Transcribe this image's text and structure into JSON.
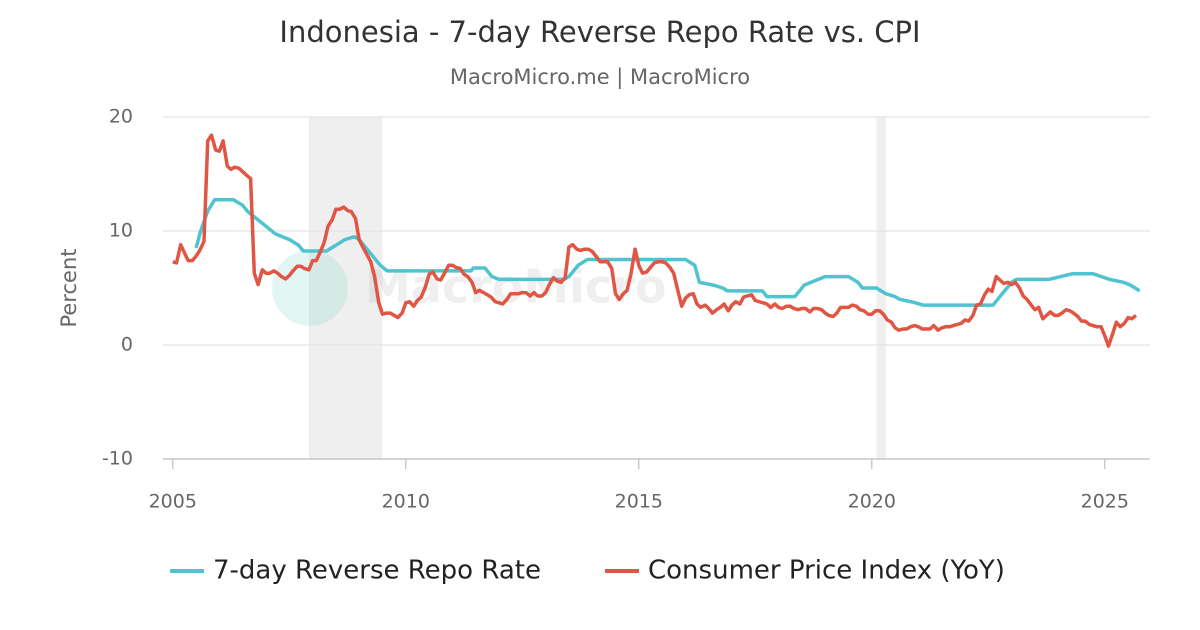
{
  "chart_data": {
    "type": "line",
    "title": "Indonesia - 7-day Reverse Repo Rate vs. CPI",
    "subtitle": "MacroMicro.me | MacroMicro",
    "y_label": "Percent",
    "watermark": "MacroMicro",
    "xlim": [
      2004.79,
      2025.97
    ],
    "xticks": [
      2005,
      2010,
      2015,
      2020,
      2025
    ],
    "ylim": [
      -10,
      20
    ],
    "yticks": [
      -10,
      0,
      10,
      20
    ],
    "grid": true,
    "legend": "bottom",
    "shaded_periods": [
      [
        2007.92,
        2009.5
      ],
      [
        2020.1,
        2020.3
      ]
    ],
    "series": [
      {
        "name": "7-day Reverse Repo Rate",
        "color": "#4fc3d0",
        "x": [
          2005.5,
          2005.6,
          2005.75,
          2005.9,
          2006.3,
          2006.4,
          2006.5,
          2006.6,
          2006.75,
          2006.9,
          2007.05,
          2007.2,
          2007.35,
          2007.5,
          2007.6,
          2007.7,
          2007.8,
          2008.3,
          2008.4,
          2008.5,
          2008.6,
          2008.7,
          2008.9,
          2009.0,
          2009.1,
          2009.2,
          2009.3,
          2009.35,
          2009.4,
          2009.45,
          2009.6,
          2011.4,
          2011.45,
          2011.7,
          2011.75,
          2011.85,
          2012.0,
          2013.4,
          2013.5,
          2013.6,
          2013.7,
          2013.8,
          2013.9,
          2016.0,
          2016.1,
          2016.2,
          2016.3,
          2016.6,
          2016.8,
          2016.9,
          2017.65,
          2017.75,
          2018.35,
          2018.4,
          2018.45,
          2018.55,
          2018.7,
          2018.85,
          2019.0,
          2019.5,
          2019.6,
          2019.7,
          2019.8,
          2020.1,
          2020.2,
          2020.3,
          2020.5,
          2020.6,
          2020.9,
          2021.1,
          2022.6,
          2022.65,
          2022.75,
          2022.85,
          2022.95,
          2023.0,
          2023.1,
          2023.8,
          2024.3,
          2024.75,
          2025.1,
          2025.4,
          2025.55,
          2025.65,
          2025.75
        ],
        "values": [
          8.5,
          10.0,
          11.75,
          12.75,
          12.75,
          12.5,
          12.25,
          11.75,
          11.25,
          10.75,
          10.25,
          9.75,
          9.5,
          9.25,
          9.0,
          8.75,
          8.25,
          8.25,
          8.5,
          8.75,
          9.0,
          9.25,
          9.5,
          9.25,
          8.75,
          8.25,
          7.75,
          7.5,
          7.25,
          7.0,
          6.5,
          6.5,
          6.75,
          6.75,
          6.5,
          6.0,
          5.75,
          5.75,
          6.0,
          6.5,
          7.0,
          7.25,
          7.5,
          7.5,
          7.25,
          7.0,
          5.5,
          5.25,
          5.0,
          4.75,
          4.75,
          4.25,
          4.25,
          4.5,
          4.75,
          5.25,
          5.5,
          5.75,
          6.0,
          6.0,
          5.75,
          5.5,
          5.0,
          5.0,
          4.75,
          4.5,
          4.25,
          4.0,
          3.75,
          3.5,
          3.5,
          3.75,
          4.25,
          4.75,
          5.25,
          5.5,
          5.75,
          5.75,
          6.25,
          6.25,
          5.75,
          5.5,
          5.25,
          5.0,
          4.75
        ]
      },
      {
        "name": "Consumer Price Index (YoY)",
        "color": "#e05543",
        "x": [
          2005.0,
          2005.08,
          2005.17,
          2005.25,
          2005.33,
          2005.42,
          2005.5,
          2005.58,
          2005.67,
          2005.75,
          2005.83,
          2005.92,
          2006.0,
          2006.08,
          2006.17,
          2006.25,
          2006.33,
          2006.42,
          2006.5,
          2006.58,
          2006.67,
          2006.75,
          2006.83,
          2006.92,
          2007.0,
          2007.08,
          2007.17,
          2007.25,
          2007.33,
          2007.42,
          2007.5,
          2007.58,
          2007.67,
          2007.75,
          2007.83,
          2007.92,
          2008.0,
          2008.08,
          2008.17,
          2008.25,
          2008.33,
          2008.42,
          2008.5,
          2008.58,
          2008.67,
          2008.75,
          2008.83,
          2008.92,
          2009.0,
          2009.08,
          2009.17,
          2009.25,
          2009.33,
          2009.42,
          2009.5,
          2009.58,
          2009.67,
          2009.75,
          2009.83,
          2009.92,
          2010.0,
          2010.08,
          2010.17,
          2010.25,
          2010.33,
          2010.42,
          2010.5,
          2010.58,
          2010.67,
          2010.75,
          2010.83,
          2010.92,
          2011.0,
          2011.08,
          2011.17,
          2011.25,
          2011.33,
          2011.42,
          2011.5,
          2011.58,
          2011.67,
          2011.75,
          2011.83,
          2011.92,
          2012.0,
          2012.08,
          2012.17,
          2012.25,
          2012.33,
          2012.42,
          2012.5,
          2012.58,
          2012.67,
          2012.75,
          2012.83,
          2012.92,
          2013.0,
          2013.08,
          2013.17,
          2013.25,
          2013.33,
          2013.42,
          2013.5,
          2013.58,
          2013.67,
          2013.75,
          2013.83,
          2013.92,
          2014.0,
          2014.08,
          2014.17,
          2014.25,
          2014.33,
          2014.42,
          2014.5,
          2014.58,
          2014.67,
          2014.75,
          2014.83,
          2014.92,
          2015.0,
          2015.08,
          2015.17,
          2015.25,
          2015.33,
          2015.42,
          2015.5,
          2015.58,
          2015.67,
          2015.75,
          2015.83,
          2015.92,
          2016.0,
          2016.08,
          2016.17,
          2016.25,
          2016.33,
          2016.42,
          2016.5,
          2016.58,
          2016.67,
          2016.75,
          2016.83,
          2016.92,
          2017.0,
          2017.08,
          2017.17,
          2017.25,
          2017.33,
          2017.42,
          2017.5,
          2017.58,
          2017.67,
          2017.75,
          2017.83,
          2017.92,
          2018.0,
          2018.08,
          2018.17,
          2018.25,
          2018.33,
          2018.42,
          2018.5,
          2018.58,
          2018.67,
          2018.75,
          2018.83,
          2018.92,
          2019.0,
          2019.08,
          2019.17,
          2019.25,
          2019.33,
          2019.42,
          2019.5,
          2019.58,
          2019.67,
          2019.75,
          2019.83,
          2019.92,
          2020.0,
          2020.08,
          2020.17,
          2020.25,
          2020.33,
          2020.42,
          2020.5,
          2020.58,
          2020.67,
          2020.75,
          2020.83,
          2020.92,
          2021.0,
          2021.08,
          2021.17,
          2021.25,
          2021.33,
          2021.42,
          2021.5,
          2021.58,
          2021.67,
          2021.75,
          2021.83,
          2021.92,
          2022.0,
          2022.08,
          2022.17,
          2022.25,
          2022.33,
          2022.42,
          2022.5,
          2022.58,
          2022.67,
          2022.75,
          2022.83,
          2022.92,
          2023.0,
          2023.08,
          2023.17,
          2023.25,
          2023.33,
          2023.42,
          2023.5,
          2023.58,
          2023.67,
          2023.75,
          2023.83,
          2023.92,
          2024.0,
          2024.08,
          2024.17,
          2024.25,
          2024.33,
          2024.42,
          2024.5,
          2024.58,
          2024.67,
          2024.75,
          2024.83,
          2024.92,
          2025.0,
          2025.08,
          2025.17,
          2025.25,
          2025.33,
          2025.42,
          2025.5,
          2025.58,
          2025.67
        ],
        "values": [
          7.3,
          7.2,
          8.8,
          8.1,
          7.4,
          7.4,
          7.8,
          8.3,
          9.1,
          17.9,
          18.4,
          17.1,
          17.0,
          17.9,
          15.7,
          15.4,
          15.6,
          15.5,
          15.2,
          14.9,
          14.6,
          6.3,
          5.3,
          6.6,
          6.3,
          6.3,
          6.5,
          6.3,
          6.0,
          5.8,
          6.1,
          6.5,
          6.9,
          6.9,
          6.7,
          6.6,
          7.4,
          7.4,
          8.2,
          9.0,
          10.4,
          11.0,
          11.9,
          11.9,
          12.1,
          11.8,
          11.7,
          11.1,
          9.2,
          8.6,
          7.9,
          7.3,
          6.0,
          3.7,
          2.7,
          2.8,
          2.8,
          2.6,
          2.4,
          2.8,
          3.7,
          3.8,
          3.4,
          3.9,
          4.2,
          5.1,
          6.2,
          6.4,
          5.8,
          5.7,
          6.3,
          7.0,
          7.0,
          6.8,
          6.7,
          6.2,
          6.0,
          5.5,
          4.6,
          4.8,
          4.6,
          4.4,
          4.2,
          3.8,
          3.7,
          3.6,
          4.0,
          4.5,
          4.5,
          4.5,
          4.6,
          4.6,
          4.3,
          4.6,
          4.3,
          4.3,
          4.6,
          5.3,
          5.9,
          5.6,
          5.5,
          5.9,
          8.6,
          8.8,
          8.4,
          8.3,
          8.4,
          8.4,
          8.2,
          7.8,
          7.3,
          7.3,
          7.3,
          6.7,
          4.5,
          4.0,
          4.5,
          4.8,
          6.2,
          8.4,
          7.0,
          6.3,
          6.4,
          6.8,
          7.2,
          7.3,
          7.3,
          7.2,
          6.8,
          6.3,
          4.9,
          3.4,
          4.1,
          4.4,
          4.5,
          3.6,
          3.3,
          3.5,
          3.2,
          2.8,
          3.1,
          3.3,
          3.6,
          3.0,
          3.5,
          3.8,
          3.6,
          4.2,
          4.3,
          4.4,
          3.9,
          3.8,
          3.7,
          3.6,
          3.3,
          3.6,
          3.3,
          3.2,
          3.4,
          3.4,
          3.2,
          3.1,
          3.2,
          3.2,
          2.9,
          3.2,
          3.2,
          3.1,
          2.8,
          2.6,
          2.5,
          2.8,
          3.3,
          3.3,
          3.3,
          3.5,
          3.4,
          3.1,
          3.0,
          2.7,
          2.7,
          3.0,
          3.0,
          2.7,
          2.2,
          2.0,
          1.5,
          1.3,
          1.4,
          1.4,
          1.6,
          1.7,
          1.6,
          1.4,
          1.4,
          1.4,
          1.7,
          1.3,
          1.5,
          1.6,
          1.6,
          1.7,
          1.8,
          1.9,
          2.2,
          2.1,
          2.6,
          3.5,
          3.6,
          4.4,
          4.9,
          4.7,
          6.0,
          5.7,
          5.4,
          5.5,
          5.3,
          5.5,
          5.0,
          4.3,
          4.0,
          3.5,
          3.1,
          3.3,
          2.3,
          2.6,
          2.9,
          2.6,
          2.6,
          2.8,
          3.1,
          3.0,
          2.8,
          2.5,
          2.1,
          2.1,
          1.8,
          1.7,
          1.6,
          1.6,
          0.8,
          -0.1,
          1.0,
          2.0,
          1.6,
          1.9,
          2.4,
          2.3,
          2.6
        ]
      }
    ]
  }
}
